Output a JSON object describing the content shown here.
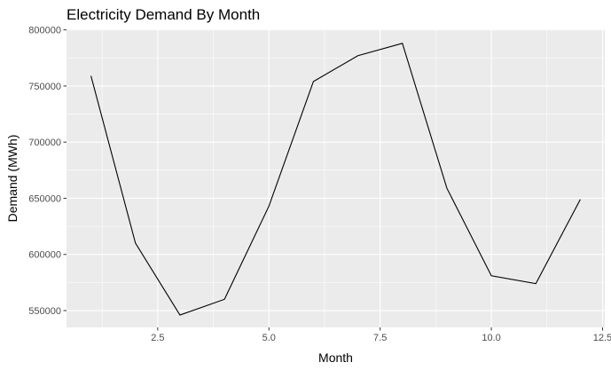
{
  "chart_data": {
    "type": "line",
    "title": "Electricity Demand By Month",
    "xlabel": "Month",
    "ylabel": "Demand (MWh)",
    "x": [
      1,
      2,
      3,
      4,
      5,
      6,
      7,
      8,
      9,
      10,
      11,
      12
    ],
    "y": [
      759000,
      610000,
      546000,
      560000,
      643000,
      754000,
      777000,
      788000,
      659000,
      581000,
      574000,
      649000
    ],
    "xlim": [
      0.45,
      12.55
    ],
    "ylim": [
      535000,
      800500
    ],
    "x_ticks": [
      2.5,
      5.0,
      7.5,
      10.0,
      12.5
    ],
    "x_tick_labels": [
      "2.5",
      "5.0",
      "7.5",
      "10.0",
      "12.5"
    ],
    "y_ticks": [
      550000,
      600000,
      650000,
      700000,
      750000,
      800000
    ],
    "y_tick_labels": [
      "550000",
      "600000",
      "650000",
      "700000",
      "750000",
      "800000"
    ],
    "grid": true,
    "colors": {
      "panel": "#ebebeb",
      "grid": "#ffffff",
      "line": "#000000",
      "tick_text": "#4d4d4d"
    }
  }
}
